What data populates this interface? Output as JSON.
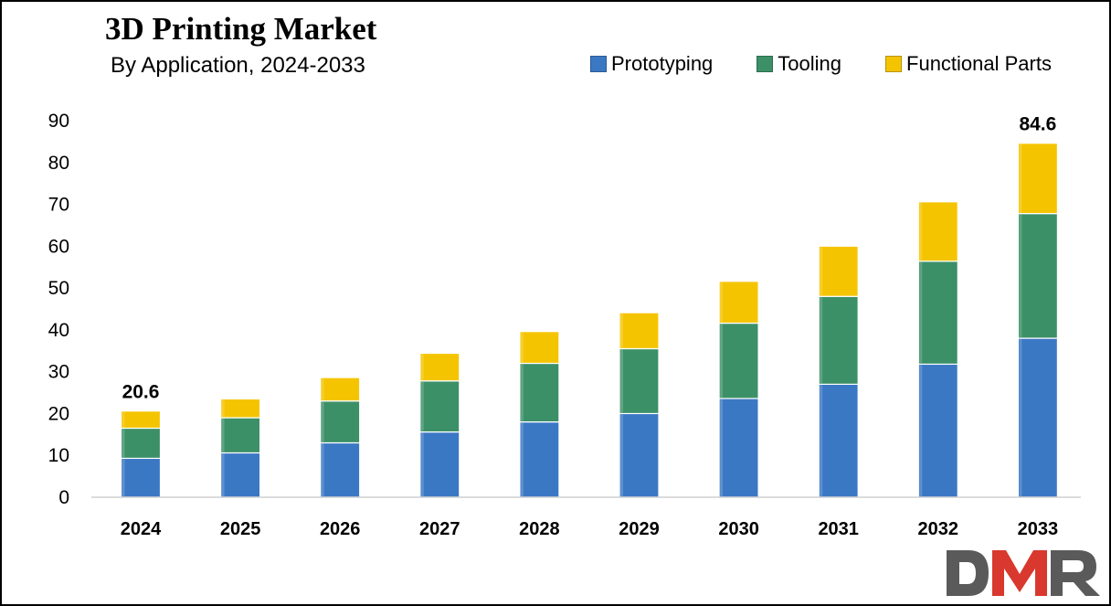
{
  "chart_data": {
    "type": "bar",
    "stacked": true,
    "title": "3D Printing Market",
    "subtitle": "By Application, 2024-2033",
    "categories": [
      "2024",
      "2025",
      "2026",
      "2027",
      "2028",
      "2029",
      "2030",
      "2031",
      "2032",
      "2033"
    ],
    "series": [
      {
        "name": "Prototyping",
        "color": "#3b78c4",
        "values": [
          9.3,
          10.6,
          13.0,
          15.6,
          18.0,
          20.0,
          23.6,
          27.0,
          31.8,
          38.0
        ]
      },
      {
        "name": "Tooling",
        "color": "#3c9068",
        "values": [
          7.2,
          8.4,
          10.0,
          12.2,
          14.0,
          15.5,
          18.0,
          21.0,
          24.6,
          29.8
        ]
      },
      {
        "name": "Functional Parts",
        "color": "#f5c400",
        "values": [
          4.1,
          4.5,
          5.6,
          6.6,
          7.6,
          8.6,
          10.0,
          12.0,
          14.2,
          16.8
        ]
      }
    ],
    "ylim": [
      0,
      90
    ],
    "yticks": [
      0,
      10,
      20,
      30,
      40,
      50,
      60,
      70,
      80,
      90
    ],
    "xlabel": "",
    "ylabel": "",
    "grid": false,
    "legend_position": "top-right",
    "data_labels": [
      {
        "category": "2024",
        "text": "20.6"
      },
      {
        "category": "2033",
        "text": "84.6"
      }
    ]
  },
  "logo": {
    "text": "DMR",
    "colors": [
      "#5a5a5a",
      "#d9382e",
      "#5a5a5a"
    ]
  }
}
